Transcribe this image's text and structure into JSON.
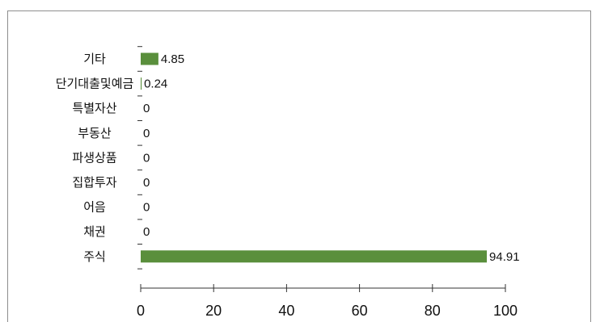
{
  "chart_data": {
    "type": "bar",
    "orientation": "horizontal",
    "title": "",
    "xlabel": "",
    "ylabel": "",
    "categories": [
      "기타",
      "단기대출및예금",
      "특별자산",
      "부동산",
      "파생상품",
      "집합투자",
      "어음",
      "채권",
      "주식"
    ],
    "values": [
      4.85,
      0.24,
      0,
      0,
      0,
      0,
      0,
      0,
      94.91
    ],
    "value_labels": [
      "4.85",
      "0.24",
      "0",
      "0",
      "0",
      "0",
      "0",
      "0",
      "94.91"
    ],
    "xlim": [
      0,
      100
    ],
    "x_ticks": [
      0,
      20,
      40,
      60,
      80,
      100
    ],
    "x_tick_labels": [
      "0",
      "20",
      "40",
      "60",
      "80",
      "100"
    ],
    "bar_color": "#5a8f3c",
    "grid": false,
    "legend": "none"
  }
}
